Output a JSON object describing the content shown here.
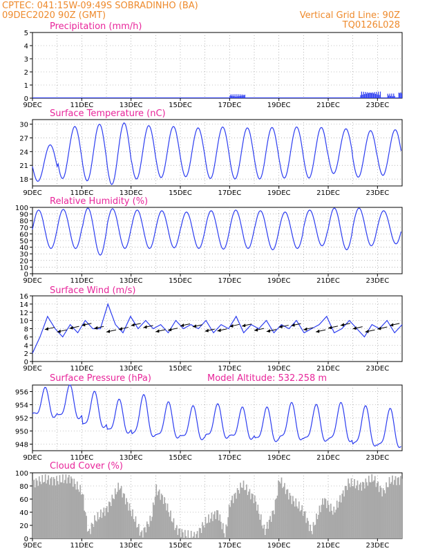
{
  "header": {
    "left_line1": "CPTEC:   041:15W-09:49S   SOBRADINHO (BA)",
    "left_line2": "09DEC2020 90Z (GMT)",
    "right_line1": "Vertical Grid Line: 90Z",
    "right_line2": "TQ0126L028"
  },
  "colors": {
    "header": "#ee8a2c",
    "title": "#e8259a",
    "line": "#2b3cf0",
    "bar": "#a9a9a9",
    "grid": "#888888"
  },
  "x_axis_labels": [
    "9DEC",
    "11DEC",
    "13DEC",
    "15DEC",
    "17DEC",
    "19DEC",
    "21DEC",
    "23DEC"
  ],
  "chart_data": [
    {
      "type": "bar",
      "title": "Precipitation (mm/h)",
      "ylim": [
        0,
        5
      ],
      "yticks": [
        0,
        1,
        2,
        3,
        4,
        5
      ],
      "x_range_days": [
        9,
        24
      ],
      "events": [
        {
          "start": 17.0,
          "end": 17.6,
          "peak": 0.3
        },
        {
          "start": 22.3,
          "end": 23.1,
          "peak": 0.5
        },
        {
          "start": 23.4,
          "end": 23.7,
          "peak": 0.35
        },
        {
          "start": 23.85,
          "end": 24.0,
          "peak": 0.5
        }
      ]
    },
    {
      "type": "line",
      "title": "Surface Temperature (nC)",
      "ylim": [
        16.5,
        31
      ],
      "yticks": [
        18,
        21,
        24,
        27,
        30
      ],
      "x_range_days": [
        9,
        24
      ],
      "daily_max": [
        25.5,
        29.5,
        30.0,
        30.3,
        29.7,
        29.5,
        29.2,
        29.4,
        29.2,
        29.3,
        29.4,
        29.3,
        29.0,
        28.6,
        28.8
      ],
      "daily_min": [
        17.5,
        18.1,
        17.6,
        16.8,
        18.0,
        18.3,
        18.5,
        18.1,
        18.0,
        18.0,
        18.2,
        18.2,
        19.2,
        18.4,
        18.8
      ]
    },
    {
      "type": "line",
      "title": "Relative Humidity (%)",
      "ylim": [
        0,
        100
      ],
      "yticks": [
        0,
        10,
        20,
        30,
        40,
        50,
        60,
        70,
        80,
        90,
        100
      ],
      "x_range_days": [
        9,
        24
      ],
      "daily_max": [
        96,
        97,
        99,
        98,
        96,
        95,
        93,
        95,
        96,
        95,
        93,
        96,
        99,
        99,
        95
      ],
      "daily_min": [
        38,
        38,
        28,
        38,
        38,
        39,
        38,
        37,
        38,
        36,
        38,
        42,
        36,
        42,
        45
      ]
    },
    {
      "type": "line",
      "title": "Surface Wind (m/s)",
      "ylim": [
        0,
        16
      ],
      "yticks": [
        0,
        2,
        4,
        6,
        8,
        10,
        12,
        14,
        16
      ],
      "x_range_days": [
        9,
        24
      ],
      "speed_points": [
        2,
        6,
        11,
        8,
        6,
        9,
        7,
        10,
        8,
        8,
        14,
        9,
        7,
        11,
        8,
        10,
        8,
        9,
        7,
        10,
        8,
        9,
        8,
        10,
        7,
        9,
        8,
        11,
        7,
        9,
        8,
        10,
        7,
        9,
        8,
        10,
        7,
        8,
        9,
        11,
        7,
        8,
        10,
        8,
        6,
        9,
        8,
        10,
        7,
        9
      ],
      "arrow_direction": "easterly"
    },
    {
      "type": "line",
      "title": "Surface Pressure (hPa)",
      "ylim": [
        947,
        957
      ],
      "yticks": [
        948,
        950,
        952,
        954,
        956
      ],
      "x_range_days": [
        9,
        24
      ],
      "annotation": "Model Altitude: 532.258 m",
      "daily_max": [
        955.8,
        956.2,
        955.2,
        954.0,
        954.7,
        953.6,
        953.0,
        953.3,
        952.8,
        952.8,
        953.5,
        953.2,
        953.5,
        953.0,
        952.6
      ],
      "daily_min": [
        951.8,
        951.5,
        950.1,
        949.3,
        948.6,
        948.5,
        948.3,
        948.5,
        948.4,
        948.0,
        948.2,
        948.0,
        947.9,
        947.2,
        947.0
      ]
    },
    {
      "type": "bar",
      "title": "Cloud Cover (%)",
      "ylim": [
        0,
        100
      ],
      "yticks": [
        0,
        20,
        40,
        60,
        80,
        100
      ],
      "x_range_days": [
        9,
        24
      ],
      "profile_pairs": [
        [
          9.0,
          85
        ],
        [
          9.5,
          90
        ],
        [
          10.0,
          88
        ],
        [
          10.5,
          92
        ],
        [
          11.0,
          70
        ],
        [
          11.25,
          8
        ],
        [
          11.5,
          28
        ],
        [
          12.0,
          45
        ],
        [
          12.5,
          80
        ],
        [
          13.0,
          40
        ],
        [
          13.4,
          6
        ],
        [
          13.8,
          30
        ],
        [
          14.0,
          75
        ],
        [
          14.3,
          60
        ],
        [
          14.8,
          15
        ],
        [
          15.2,
          5
        ],
        [
          15.6,
          3
        ],
        [
          16.0,
          25
        ],
        [
          16.5,
          40
        ],
        [
          16.8,
          5
        ],
        [
          17.0,
          55
        ],
        [
          17.5,
          82
        ],
        [
          18.0,
          60
        ],
        [
          18.4,
          10
        ],
        [
          18.8,
          45
        ],
        [
          19.0,
          90
        ],
        [
          19.5,
          60
        ],
        [
          20.0,
          40
        ],
        [
          20.3,
          10
        ],
        [
          20.8,
          60
        ],
        [
          21.2,
          40
        ],
        [
          21.8,
          85
        ],
        [
          22.3,
          80
        ],
        [
          22.8,
          92
        ],
        [
          23.2,
          70
        ],
        [
          23.5,
          88
        ],
        [
          24.0,
          90
        ]
      ]
    }
  ]
}
